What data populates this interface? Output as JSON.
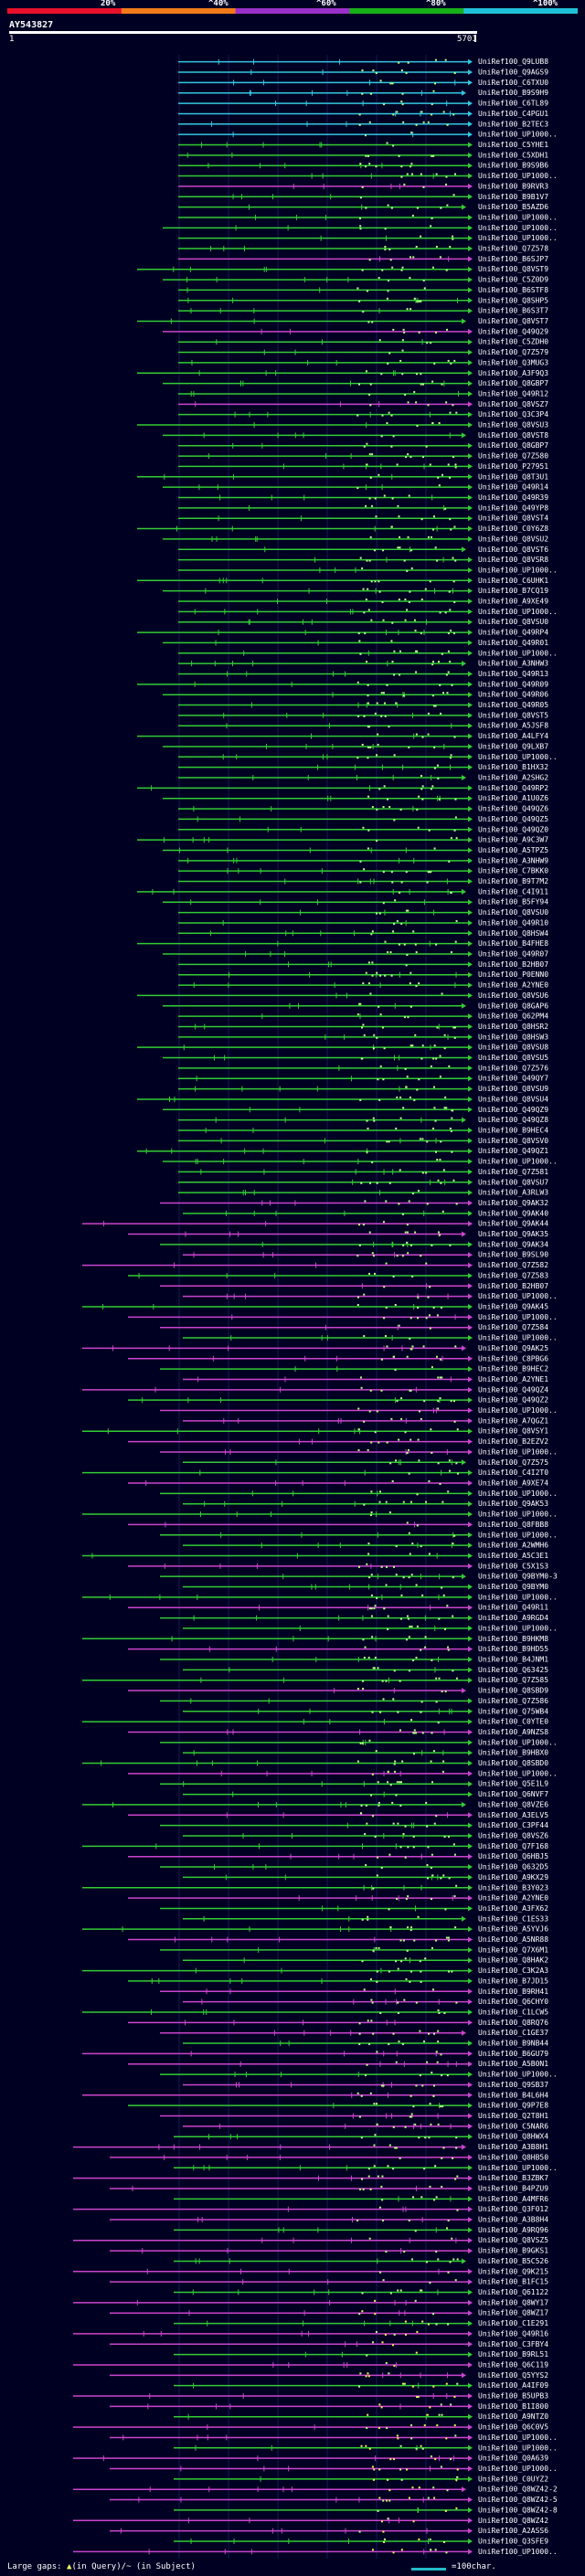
{
  "colorbar": {
    "labels": [
      "20%",
      "^40%",
      "^60%",
      "^80%",
      "^100%"
    ],
    "colors": [
      "#e8102a",
      "#f07a1a",
      "#9a30c8",
      "#18b018",
      "#20c0d8"
    ]
  },
  "query": {
    "name": "AY543827",
    "start": "1",
    "end": "5701"
  },
  "hit_ids": [
    "UniRef100_Q9LUB8",
    "UniRef100_Q9AGS9",
    "UniRef100_C6TXU0",
    "UniRef100_B9S9H9",
    "UniRef100_C6TL89",
    "UniRef100_C4PGU1",
    "UniRef100_B2TEC3",
    "UniRef100_UP1000..",
    "UniRef100_C5YHE1",
    "UniRef100_C5XDH1",
    "UniRef100_B9S9B6",
    "UniRef100_UP1000..",
    "UniRef100_B9RVR3",
    "UniRef100_B9B1V7",
    "UniRef100_B5AZD6",
    "UniRef100_UP1000..",
    "UniRef100_UP1000..",
    "UniRef100_UP1000..",
    "UniRef100_Q7Z578",
    "UniRef100_B6SJP7",
    "UniRef100_Q8VST9",
    "UniRef100_C5Z0D9",
    "UniRef100_B6STF8",
    "UniRef100_Q8SHP5",
    "UniRef100_B6S3T7",
    "UniRef100_Q8VST7",
    "UniRef100_Q49Q29",
    "UniRef100_C5ZDH0",
    "UniRef100_Q7Z579",
    "UniRef100_Q3MUG3",
    "UniRef100_A3F9Q3",
    "UniRef100_Q8GBP7",
    "UniRef100_Q49R12",
    "UniRef100_Q8VSZ7",
    "UniRef100_Q3C3P4",
    "UniRef100_Q8VSU3",
    "UniRef100_Q8VST8",
    "UniRef100_Q8GBP7",
    "UniRef100_Q7Z580",
    "UniRef100_P27951",
    "UniRef100_Q8T3U1",
    "UniRef100_Q49R14",
    "UniRef100_Q49R39",
    "UniRef100_Q49YP8",
    "UniRef100_Q8VST4",
    "UniRef100_C0Y6Z8",
    "UniRef100_Q8VSU2",
    "UniRef100_Q8VST6",
    "UniRef100_Q8VSR8",
    "UniRef100_UP1000..",
    "UniRef100_C6UHK1",
    "UniRef100_B7CQ19",
    "UniRef100_A9XE49",
    "UniRef100_UP1000..",
    "UniRef100_Q8VSU0",
    "UniRef100_Q49RP4",
    "UniRef100_Q49R01",
    "UniRef100_UP1000..",
    "UniRef100_A3NHW3",
    "UniRef100_Q49R13",
    "UniRef100_Q49R09",
    "UniRef100_Q49R06",
    "UniRef100_Q49R05",
    "UniRef100_Q8VST5",
    "UniRef100_A5JSF8",
    "UniRef100_A4LFY4",
    "UniRef100_Q9LXB7",
    "UniRef100_UP1000..",
    "UniRef100_B1HX32",
    "UniRef100_A2SHG2",
    "UniRef100_Q49RP2",
    "UniRef100_A1U0Z6",
    "UniRef100_Q49QZ6",
    "UniRef100_Q49QZ5",
    "UniRef100_Q49QZ0",
    "UniRef100_A9C3W7",
    "UniRef100_A5TPZ5",
    "UniRef100_A3NHW9",
    "UniRef100_C7BKK0",
    "UniRef100_B9T7M2",
    "UniRef100_C4I911",
    "UniRef100_B5FY94",
    "UniRef100_Q8VSU0",
    "UniRef100_Q49R10",
    "UniRef100_Q8HSW4",
    "UniRef100_B4FHE8",
    "UniRef100_Q49R07",
    "UniRef100_B2HB07",
    "UniRef100_P0ENN0",
    "UniRef100_A2YNE0",
    "UniRef100_Q8VSU6",
    "UniRef100_Q8GAP6",
    "UniRef100_Q62PM4",
    "UniRef100_Q8HSR2",
    "UniRef100_Q8HSW3",
    "UniRef100_Q8VSU8",
    "UniRef100_Q8VSU5",
    "UniRef100_Q7Z576",
    "UniRef100_Q49QY7",
    "UniRef100_Q8VSU9",
    "UniRef100_Q8VSU4",
    "UniRef100_Q49QZ9",
    "UniRef100_Q49QZ8",
    "UniRef100_B9HEC4",
    "UniRef100_Q8VSV0",
    "UniRef100_Q49QZ1",
    "UniRef100_UP1000..",
    "UniRef100_Q7Z581",
    "UniRef100_Q8VSU7",
    "UniRef100_A3RLW3",
    "UniRef100_Q9AK32",
    "UniRef100_Q9AK40",
    "UniRef100_Q9AK44",
    "UniRef100_Q9AK35",
    "UniRef100_Q9AK34",
    "UniRef100_B9SL90",
    "UniRef100_Q7Z582",
    "UniRef100_Q7Z583",
    "UniRef100_B2HB07",
    "UniRef100_UP1000..",
    "UniRef100_Q9AK45",
    "UniRef100_UP1000..",
    "UniRef100_Q7Z584",
    "UniRef100_UP1000..",
    "UniRef100_Q9AK25",
    "UniRef100_C8PBG6",
    "UniRef100_B9HEC2",
    "UniRef100_A2YNE1",
    "UniRef100_Q49QZ4",
    "UniRef100_Q49QZ2",
    "UniRef100_UP1000..",
    "UniRef100_A7QGZ1",
    "UniRef100_Q8VSY1",
    "UniRef100_B2EZV2",
    "UniRef100_UP1000..",
    "UniRef100_Q7Z575",
    "UniRef100_C4I2T0",
    "UniRef100_A9XE74",
    "UniRef100_UP1000..",
    "UniRef100_Q9AK53",
    "UniRef100_UP1000..",
    "UniRef100_Q8FBB8",
    "UniRef100_UP1000..",
    "UniRef100_A2WMH6",
    "UniRef100_A5C3E1",
    "UniRef100_C5X1S3",
    "UniRef100_Q9BYM0-3",
    "UniRef100_Q9BYM0",
    "UniRef100_UP1000..",
    "UniRef100_Q49R11",
    "UniRef100_A9RGD4",
    "UniRef100_UP1000..",
    "UniRef100_B9HKM8",
    "UniRef100_B9HD55",
    "UniRef100_B4JNM1",
    "UniRef100_Q63425",
    "UniRef100_Q7Z585",
    "UniRef100_Q8SBD9",
    "UniRef100_Q7Z586",
    "UniRef100_Q75WB4",
    "UniRef100_C0YTE0",
    "UniRef100_A9NZS8",
    "UniRef100_UP1000..",
    "UniRef100_B9HBX0",
    "UniRef100_Q8SBD0",
    "UniRef100_UP1000..",
    "UniRef100_Q5E1L9",
    "UniRef100_Q6NVF7",
    "UniRef100_Q8VZE6",
    "UniRef100_A3ELV5",
    "UniRef100_C3PF44",
    "UniRef100_Q8VSZ6",
    "UniRef100_Q7F168",
    "UniRef100_Q6HBJ5",
    "UniRef100_Q632D5",
    "UniRef100_A9KX29",
    "UniRef100_B3Y023",
    "UniRef100_A2YNE0",
    "UniRef100_A3FX62",
    "UniRef100_C1ES33",
    "UniRef100_A5YVJ6",
    "UniRef100_A5NR88",
    "UniRef100_Q7X6M1",
    "UniRef100_Q8HAK2",
    "UniRef100_C3K2A3",
    "UniRef100_B7JD15",
    "UniRef100_B9RH41",
    "UniRef100_Q6CHY0",
    "UniRef100_C1LCW5",
    "UniRef100_Q8RQ76",
    "UniRef100_C1GE37",
    "UniRef100_B9NB44",
    "UniRef100_B6GU79",
    "UniRef100_A5B0N1",
    "UniRef100_UP1000..",
    "UniRef100_Q9SB37",
    "UniRef100_B4L6H4",
    "UniRef100_Q9P7E8",
    "UniRef100_Q2T8H1",
    "UniRef100_C5NAR6",
    "UniRef100_Q8HWX4",
    "UniRef100_A3B8H1",
    "UniRef100_Q8HB50",
    "UniRef100_UP1000..",
    "UniRef100_B3ZBK7",
    "UniRef100_B4PZU9",
    "UniRef100_A4MFR6",
    "UniRef100_Q3F012",
    "UniRef100_A3B8H4",
    "UniRef100_A9RQ96",
    "UniRef100_Q8VSZ5",
    "UniRef100_B9GKS1",
    "UniRef100_B5C526",
    "UniRef100_Q9K215",
    "UniRef100_B1FC15",
    "UniRef100_Q61122",
    "UniRef100_Q8WY17",
    "UniRef100_Q8WZ17",
    "UniRef100_C1E291",
    "UniRef100_Q49R16",
    "UniRef100_C3FBY4",
    "UniRef100_B9RL51",
    "UniRef100_Q6C119",
    "UniRef100_Q5YYS2",
    "UniRef100_A4IF09",
    "UniRef100_B5UPB3",
    "UniRef100_B1I800",
    "UniRef100_A9NTZ0",
    "UniRef100_Q6C0V5",
    "UniRef100_UP1000..",
    "UniRef100_UP1000..",
    "UniRef100_Q0A639",
    "UniRef100_UP1000..",
    "UniRef100_C0UYZ2",
    "UniRef100_Q8WZ42-2",
    "UniRef100_Q8WZ42-5",
    "UniRef100_Q8WZ42-8",
    "UniRef100_Q8WZ42",
    "UniRef100_A2ASS6",
    "UniRef100_Q3SFE9",
    "UniRef100_UP1000.."
  ],
  "footer": {
    "large_gaps": "Large gaps: ",
    "gap_marker": "▲",
    "in_query": "(in Query)/",
    "in_subject": "~ (in Subject)",
    "scale": "=100char."
  }
}
